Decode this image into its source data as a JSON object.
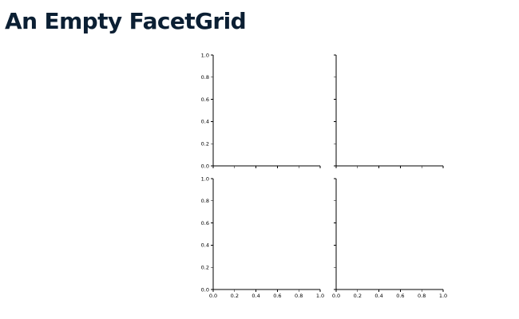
{
  "title": "An Empty FacetGrid",
  "chart_data": {
    "type": "scatter",
    "grid": false,
    "facets": {
      "rows": 2,
      "cols": 2
    },
    "series": [],
    "xlim": [
      0.0,
      1.0
    ],
    "ylim": [
      0.0,
      1.0
    ],
    "x_ticks": [
      "0.0",
      "0.2",
      "0.4",
      "0.6",
      "0.8",
      "1.0"
    ],
    "y_ticks": [
      "0.0",
      "0.2",
      "0.4",
      "0.6",
      "0.8",
      "1.0"
    ],
    "spines": [
      "left",
      "bottom"
    ]
  }
}
